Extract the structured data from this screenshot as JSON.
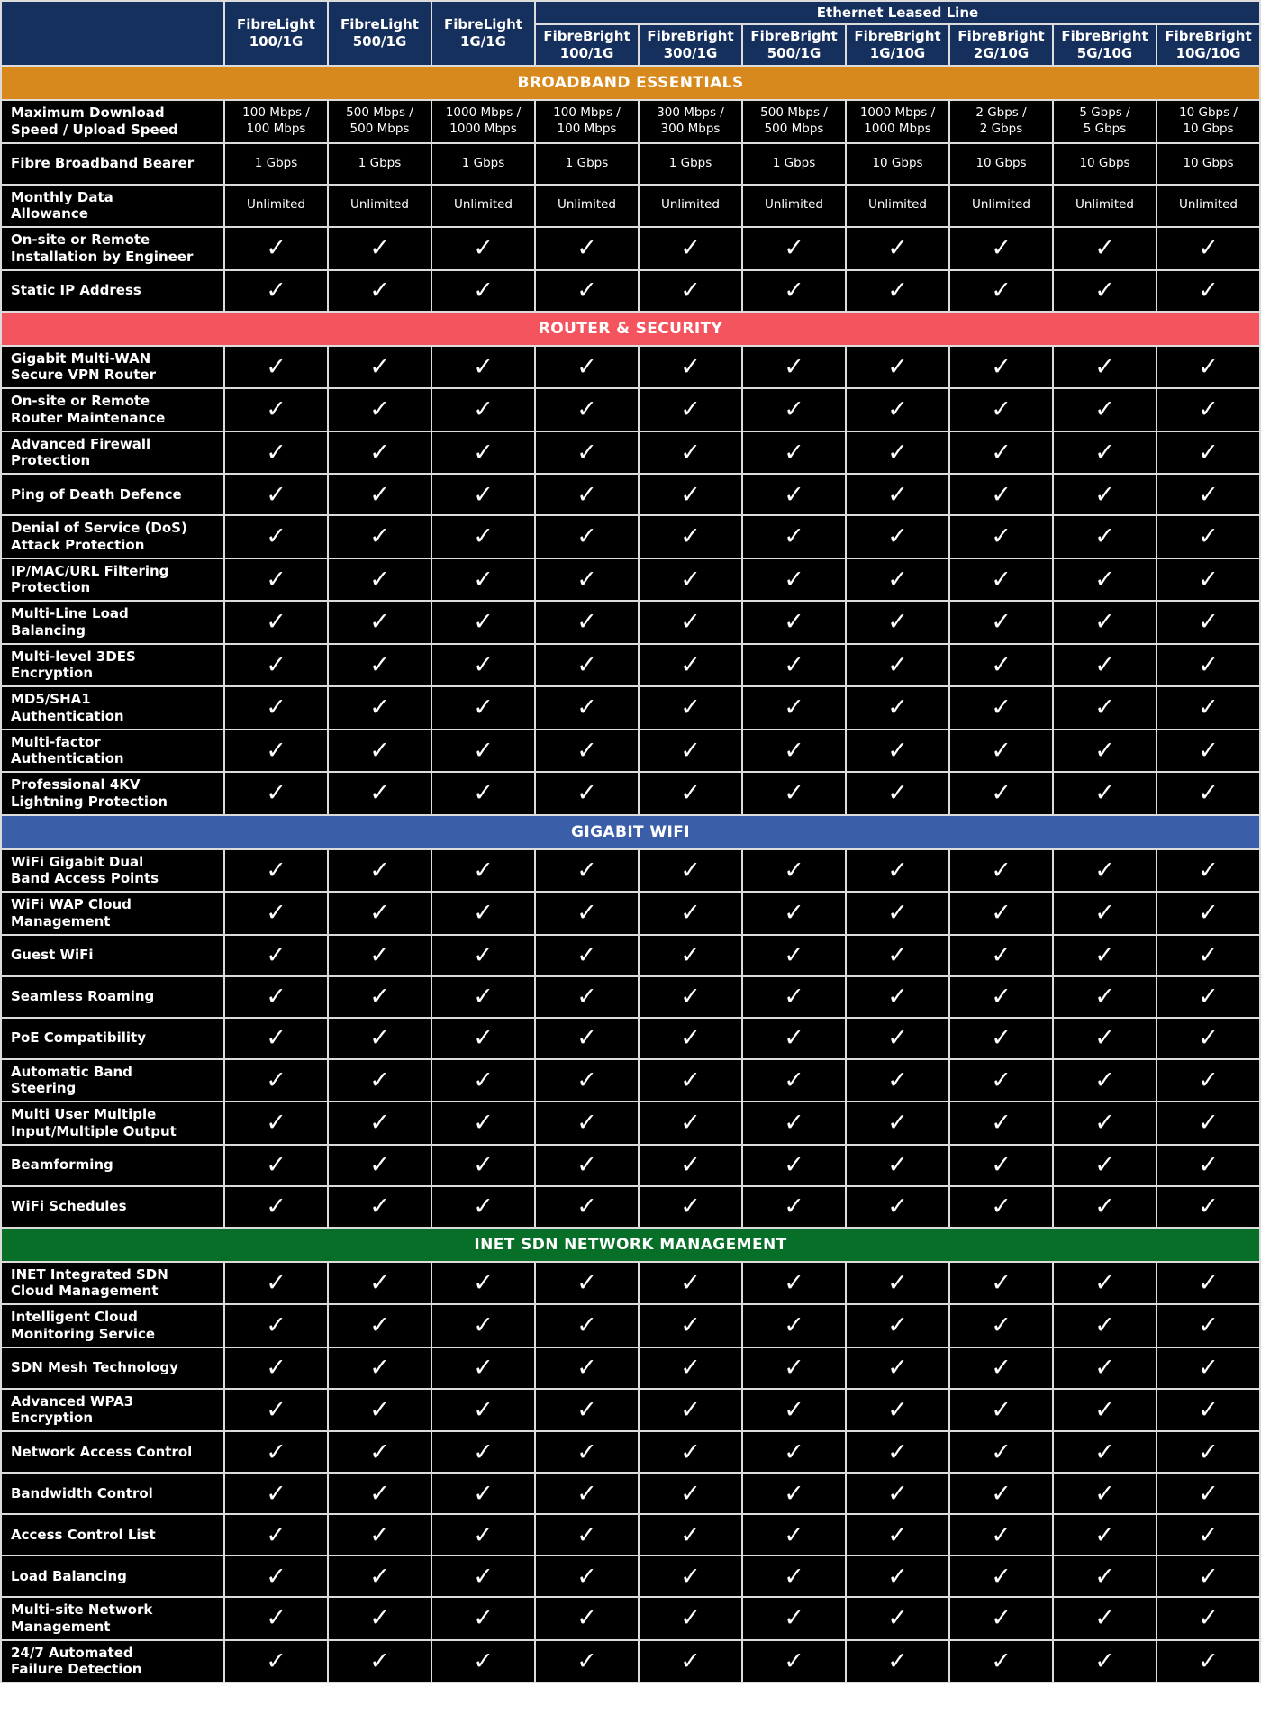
{
  "header": {
    "group_label": "Ethernet Leased Line",
    "columns": [
      {
        "label": "FibreLight\n100/1G"
      },
      {
        "label": "FibreLight\n500/1G"
      },
      {
        "label": "FibreLight\n1G/1G"
      },
      {
        "label": "FibreBright\n100/1G"
      },
      {
        "label": "FibreBright\n300/1G"
      },
      {
        "label": "FibreBright\n500/1G"
      },
      {
        "label": "FibreBright\n1G/10G"
      },
      {
        "label": "FibreBright\n2G/10G"
      },
      {
        "label": "FibreBright\n5G/10G"
      },
      {
        "label": "FibreBright\n10G/10G"
      }
    ]
  },
  "check_glyph": "✓",
  "colors": {
    "header_navy": "#16305e",
    "broadband_orange": "#d8891e",
    "security_red": "#f4545e",
    "wifi_blue": "#3a5fa8",
    "sdn_green": "#076f27",
    "cell_black": "#000000",
    "grid_line": "#dcdcdc"
  },
  "sections": [
    {
      "title": "BROADBAND ESSENTIALS",
      "color": "#d8891e",
      "rows": [
        {
          "label": "Maximum Download\nSpeed / Upload Speed",
          "type": "text",
          "values": [
            "100 Mbps /\n100 Mbps",
            "500 Mbps /\n500 Mbps",
            "1000 Mbps /\n1000 Mbps",
            "100 Mbps /\n100 Mbps",
            "300 Mbps /\n300 Mbps",
            "500 Mbps /\n500 Mbps",
            "1000 Mbps /\n1000 Mbps",
            "2 Gbps /\n2 Gbps",
            "5 Gbps /\n5 Gbps",
            "10 Gbps /\n10 Gbps"
          ]
        },
        {
          "label": "Fibre Broadband Bearer",
          "type": "text",
          "values": [
            "1 Gbps",
            "1 Gbps",
            "1 Gbps",
            "1 Gbps",
            "1 Gbps",
            "1 Gbps",
            "10 Gbps",
            "10 Gbps",
            "10 Gbps",
            "10 Gbps"
          ]
        },
        {
          "label": "Monthly Data\nAllowance",
          "type": "text",
          "values": [
            "Unlimited",
            "Unlimited",
            "Unlimited",
            "Unlimited",
            "Unlimited",
            "Unlimited",
            "Unlimited",
            "Unlimited",
            "Unlimited",
            "Unlimited"
          ]
        },
        {
          "label": "On-site or Remote\nInstallation by Engineer",
          "type": "check"
        },
        {
          "label": "Static IP Address",
          "type": "check"
        }
      ]
    },
    {
      "title": "ROUTER & SECURITY",
      "color": "#f4545e",
      "rows": [
        {
          "label": "Gigabit Multi-WAN\nSecure VPN Router",
          "type": "check"
        },
        {
          "label": "On-site or Remote\nRouter Maintenance",
          "type": "check"
        },
        {
          "label": "Advanced Firewall\nProtection",
          "type": "check"
        },
        {
          "label": "Ping of Death Defence",
          "type": "check"
        },
        {
          "label": "Denial of Service (DoS)\nAttack Protection",
          "type": "check"
        },
        {
          "label": "IP/MAC/URL Filtering\nProtection",
          "type": "check"
        },
        {
          "label": "Multi-Line Load\nBalancing",
          "type": "check"
        },
        {
          "label": "Multi-level 3DES\nEncryption",
          "type": "check"
        },
        {
          "label": "MD5/SHA1\nAuthentication",
          "type": "check"
        },
        {
          "label": "Multi-factor\nAuthentication",
          "type": "check"
        },
        {
          "label": "Professional 4KV\nLightning Protection",
          "type": "check"
        }
      ]
    },
    {
      "title": "GIGABIT WIFI",
      "color": "#3a5fa8",
      "rows": [
        {
          "label": "WiFi Gigabit Dual\nBand Access Points",
          "type": "check"
        },
        {
          "label": "WiFi WAP Cloud\nManagement",
          "type": "check"
        },
        {
          "label": "Guest WiFi",
          "type": "check"
        },
        {
          "label": "Seamless Roaming",
          "type": "check"
        },
        {
          "label": "PoE Compatibility",
          "type": "check"
        },
        {
          "label": "Automatic Band\nSteering",
          "type": "check"
        },
        {
          "label": "Multi User Multiple\nInput/Multiple Output",
          "type": "check"
        },
        {
          "label": "Beamforming",
          "type": "check"
        },
        {
          "label": "WiFi Schedules",
          "type": "check"
        }
      ]
    },
    {
      "title": "INET SDN NETWORK MANAGEMENT",
      "color": "#076f27",
      "rows": [
        {
          "label": "INET Integrated SDN\nCloud Management",
          "type": "check"
        },
        {
          "label": "Intelligent Cloud\nMonitoring Service",
          "type": "check"
        },
        {
          "label": "SDN Mesh Technology",
          "type": "check"
        },
        {
          "label": "Advanced WPA3\nEncryption",
          "type": "check"
        },
        {
          "label": "Network Access Control",
          "type": "check"
        },
        {
          "label": "Bandwidth Control",
          "type": "check"
        },
        {
          "label": "Access Control List",
          "type": "check"
        },
        {
          "label": "Load Balancing",
          "type": "check"
        },
        {
          "label": "Multi-site Network\nManagement",
          "type": "check"
        },
        {
          "label": "24/7 Automated\nFailure Detection",
          "type": "check"
        }
      ]
    }
  ]
}
